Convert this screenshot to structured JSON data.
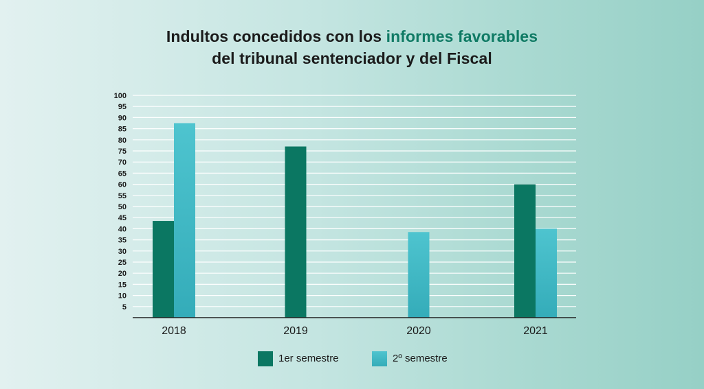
{
  "title": {
    "line1_prefix": "Indultos concedidos con los ",
    "line1_highlight": "informes favorables",
    "line2": "del tribunal sentenciador y del Fiscal"
  },
  "colors": {
    "series1": "#0b7762",
    "series2_top": "#4ec4cf",
    "series2_bottom": "#34acb9",
    "highlight": "#0f7a64",
    "grid": "#ffffff",
    "axis": "#222222",
    "text": "#1b1b1b"
  },
  "legend": [
    {
      "label": "1er semestre",
      "icon": "square-swatch-dark-green"
    },
    {
      "label": "2º semestre",
      "icon": "square-swatch-turquoise"
    }
  ],
  "chart_data": {
    "type": "bar",
    "title": "Indultos concedidos con los informes favorables del tribunal sentenciador y del Fiscal",
    "xlabel": "",
    "ylabel": "",
    "categories": [
      "2018",
      "2019",
      "2020",
      "2021"
    ],
    "series": [
      {
        "name": "1er semestre",
        "values": [
          43.5,
          77,
          null,
          60
        ]
      },
      {
        "name": "2º semestre",
        "values": [
          87.5,
          null,
          38.5,
          40
        ]
      }
    ],
    "ylim": [
      0,
      100
    ],
    "yticks": [
      5,
      10,
      15,
      20,
      25,
      30,
      35,
      40,
      45,
      50,
      55,
      60,
      65,
      70,
      75,
      80,
      85,
      90,
      95,
      100
    ],
    "grid": true,
    "legend_position": "bottom"
  }
}
